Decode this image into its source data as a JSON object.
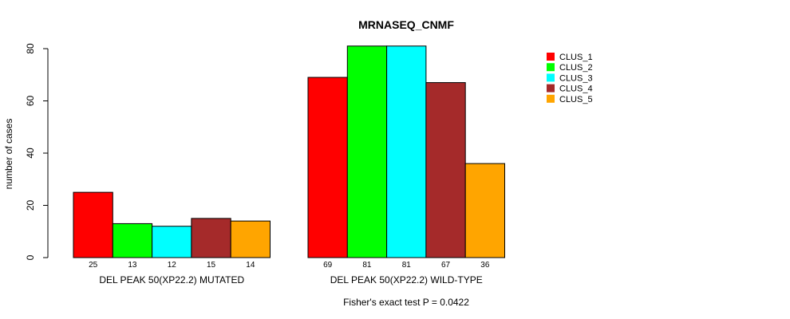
{
  "chart_data": {
    "type": "bar",
    "title": "MRNASEQ_CNMF",
    "xlabel": "",
    "ylabel": "number of cases",
    "ylim": [
      0,
      80
    ],
    "yticks": [
      0,
      20,
      40,
      60,
      80
    ],
    "grid": false,
    "legend_position": "top-right",
    "groups": [
      "DEL PEAK 50(XP22.2) MUTATED",
      "DEL PEAK 50(XP22.2) WILD-TYPE"
    ],
    "series": [
      {
        "name": "CLUS_1",
        "color": "#ff0000",
        "values": [
          25,
          69
        ]
      },
      {
        "name": "CLUS_2",
        "color": "#00ff00",
        "values": [
          13,
          81
        ]
      },
      {
        "name": "CLUS_3",
        "color": "#00ffff",
        "values": [
          12,
          81
        ]
      },
      {
        "name": "CLUS_4",
        "color": "#a52a2a",
        "values": [
          15,
          67
        ]
      },
      {
        "name": "CLUS_5",
        "color": "#ffa500",
        "values": [
          14,
          36
        ]
      }
    ],
    "bar_labels": [
      [
        "25",
        "13",
        "12",
        "15",
        "14"
      ],
      [
        "69",
        "81",
        "81",
        "67",
        "36"
      ]
    ],
    "footnote": "Fisher's exact test P = 0.0422"
  }
}
